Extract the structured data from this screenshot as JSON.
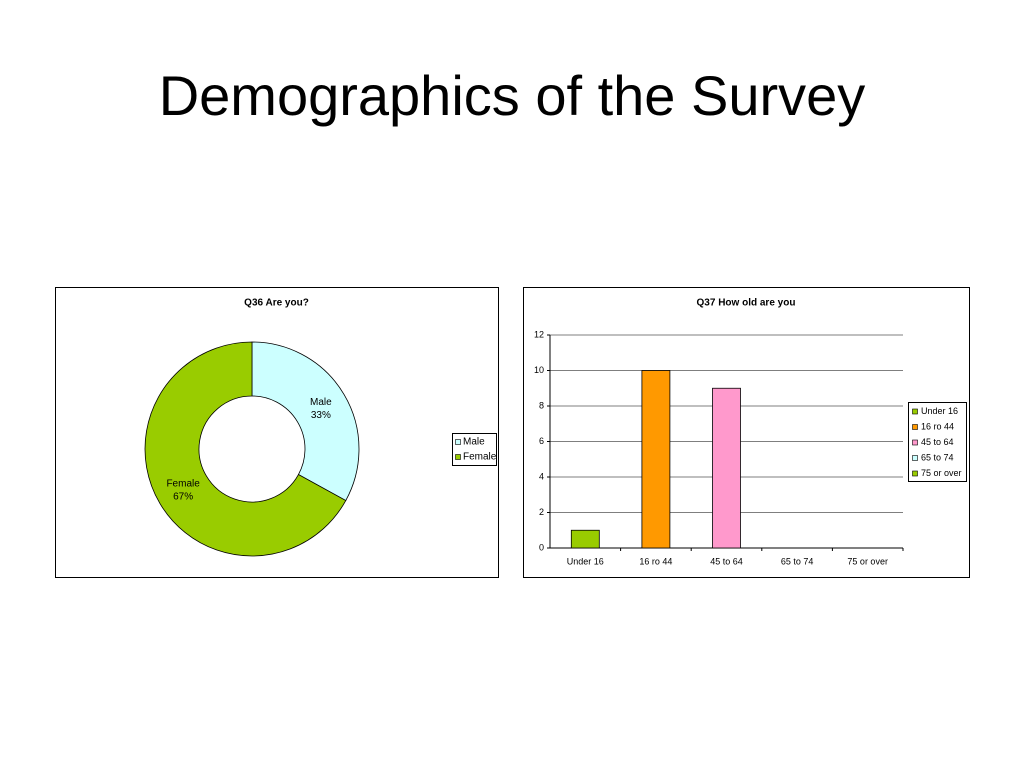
{
  "title": "Demographics of the Survey",
  "chart_data": [
    {
      "type": "donut",
      "title": "Q36 Are you?",
      "categories": [
        "Male",
        "Female"
      ],
      "values": [
        33,
        67
      ],
      "value_labels": [
        "33%",
        "67%"
      ],
      "colors": [
        "#ccffff",
        "#99cc00"
      ],
      "legend": "right"
    },
    {
      "type": "bar",
      "title": "Q37 How old are you",
      "categories": [
        "Under 16",
        "16 ro 44",
        "45 to 64",
        "65 to 74",
        "75 or over"
      ],
      "values": [
        1,
        10,
        9,
        0,
        0
      ],
      "colors": [
        "#99cc00",
        "#ff9900",
        "#ff99cc",
        "#ccffff",
        "#99cc00"
      ],
      "ylim": [
        0,
        12
      ],
      "yticks": [
        0,
        2,
        4,
        6,
        8,
        10,
        12
      ],
      "grid": true,
      "legend": "right"
    }
  ]
}
